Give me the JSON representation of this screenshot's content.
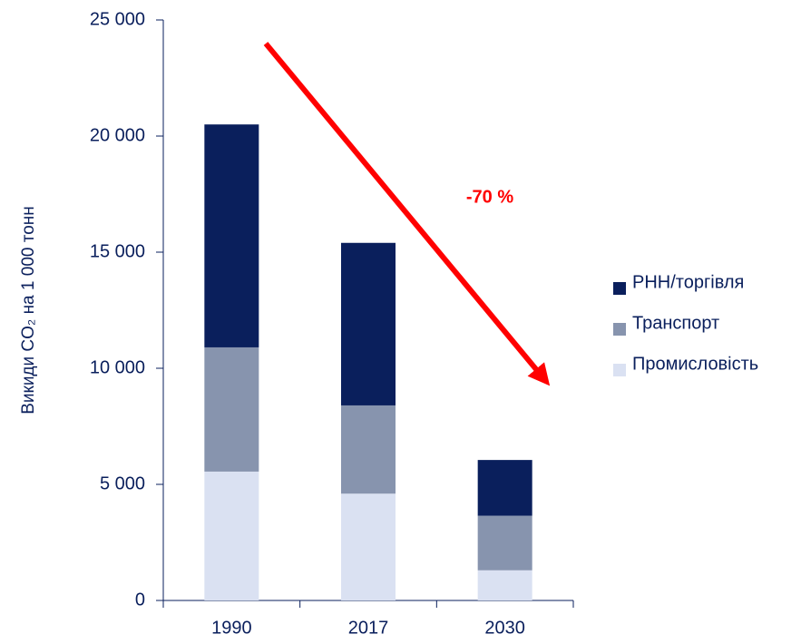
{
  "chart_data": {
    "type": "stacked_bar",
    "y_label": "Викиди CO₂ на 1 000 тонн",
    "categories": [
      "1990",
      "2017",
      "2030"
    ],
    "series": [
      {
        "name": "Промисловість",
        "color": "#dae1f2",
        "values": [
          5550,
          4600,
          1300
        ]
      },
      {
        "name": "Транспорт",
        "color": "#8794ae",
        "values": [
          5350,
          3800,
          2350
        ]
      },
      {
        "name": "РНН/торгівля",
        "color": "#0a1f5c",
        "values": [
          9600,
          7000,
          2400
        ]
      }
    ],
    "ylim": [
      0,
      25000
    ],
    "yticks": [
      0,
      {
        "value": 5000,
        "label": "5 000"
      },
      {
        "value": 10000,
        "label": "10 000"
      },
      {
        "value": 15000,
        "label": "15 000"
      },
      {
        "value": 20000,
        "label": "20 000"
      },
      {
        "value": 25000,
        "label": "25 000"
      }
    ],
    "annotation": "-70 %",
    "annotation_color": "#ff0000",
    "legend": "right"
  }
}
